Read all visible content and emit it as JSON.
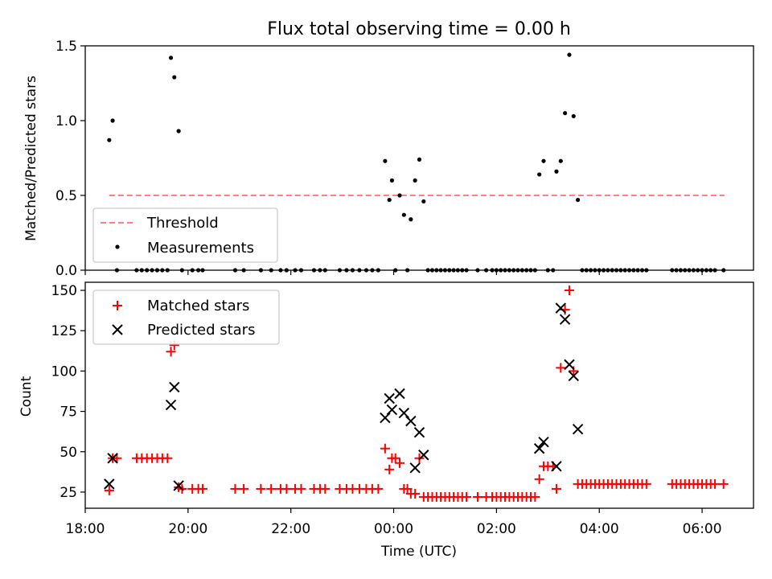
{
  "figure": {
    "title": "Flux total observing time = 0.00 h",
    "xlabel": "Time (UTC)"
  },
  "chart_data": [
    {
      "type": "scatter",
      "title": "Flux total observing time = 0.00 h",
      "ylabel": "Matched/Predicted stars",
      "xlim": [
        "18:00",
        "07:00"
      ],
      "ylim": [
        0,
        1.5
      ],
      "yticks": [
        0.0,
        0.5,
        1.0,
        1.5
      ],
      "ytick_labels": [
        "0.0",
        "0.5",
        "1.0",
        "1.5"
      ],
      "grid": false,
      "legend": {
        "placement": "lower-left",
        "entries": [
          "Threshold",
          "Measurements"
        ]
      },
      "threshold": {
        "name": "Threshold",
        "value": 0.5,
        "x_start": "18:28",
        "x_end": "06:26",
        "color": "#ff7f7f",
        "style": "dashed"
      },
      "measurements": {
        "name": "Measurements",
        "color": "#000000",
        "points": [
          [
            "18:28",
            0.87
          ],
          [
            "18:32",
            1.0
          ],
          [
            "18:37",
            0.0
          ],
          [
            "19:00",
            0.0
          ],
          [
            "19:06",
            0.0
          ],
          [
            "19:12",
            0.0
          ],
          [
            "19:18",
            0.0
          ],
          [
            "19:24",
            0.0
          ],
          [
            "19:30",
            0.0
          ],
          [
            "19:36",
            0.0
          ],
          [
            "19:40",
            1.42
          ],
          [
            "19:44",
            1.29
          ],
          [
            "19:49",
            0.93
          ],
          [
            "19:53",
            0.0
          ],
          [
            "20:05",
            0.0
          ],
          [
            "20:12",
            0.0
          ],
          [
            "20:17",
            0.0
          ],
          [
            "20:55",
            0.0
          ],
          [
            "21:05",
            0.0
          ],
          [
            "21:25",
            0.0
          ],
          [
            "21:37",
            0.0
          ],
          [
            "21:48",
            0.0
          ],
          [
            "21:55",
            0.0
          ],
          [
            "22:05",
            0.0
          ],
          [
            "22:12",
            0.0
          ],
          [
            "22:27",
            0.0
          ],
          [
            "22:34",
            0.0
          ],
          [
            "22:40",
            0.0
          ],
          [
            "22:57",
            0.0
          ],
          [
            "23:05",
            0.0
          ],
          [
            "23:12",
            0.0
          ],
          [
            "23:20",
            0.0
          ],
          [
            "23:28",
            0.0
          ],
          [
            "23:35",
            0.0
          ],
          [
            "23:42",
            0.0
          ],
          [
            "23:50",
            0.73
          ],
          [
            "23:55",
            0.47
          ],
          [
            "23:58",
            0.6
          ],
          [
            "24:02",
            0.0
          ],
          [
            "24:07",
            0.5
          ],
          [
            "24:12",
            0.37
          ],
          [
            "24:16",
            0.0
          ],
          [
            "24:20",
            0.34
          ],
          [
            "24:25",
            0.6
          ],
          [
            "24:30",
            0.74
          ],
          [
            "24:35",
            0.46
          ],
          [
            "24:40",
            0.0
          ],
          [
            "24:45",
            0.0
          ],
          [
            "24:50",
            0.0
          ],
          [
            "24:55",
            0.0
          ],
          [
            "25:00",
            0.0
          ],
          [
            "25:05",
            0.0
          ],
          [
            "25:10",
            0.0
          ],
          [
            "25:15",
            0.0
          ],
          [
            "25:20",
            0.0
          ],
          [
            "25:25",
            0.0
          ],
          [
            "25:38",
            0.0
          ],
          [
            "25:48",
            0.0
          ],
          [
            "25:55",
            0.0
          ],
          [
            "26:00",
            0.0
          ],
          [
            "26:05",
            0.0
          ],
          [
            "26:10",
            0.0
          ],
          [
            "26:15",
            0.0
          ],
          [
            "26:20",
            0.0
          ],
          [
            "26:25",
            0.0
          ],
          [
            "26:30",
            0.0
          ],
          [
            "26:35",
            0.0
          ],
          [
            "26:40",
            0.0
          ],
          [
            "26:45",
            0.0
          ],
          [
            "26:50",
            0.64
          ],
          [
            "26:55",
            0.73
          ],
          [
            "27:00",
            0.0
          ],
          [
            "27:06",
            0.0
          ],
          [
            "27:10",
            0.66
          ],
          [
            "27:15",
            0.73
          ],
          [
            "27:20",
            1.05
          ],
          [
            "27:25",
            1.44
          ],
          [
            "27:30",
            1.03
          ],
          [
            "27:35",
            0.47
          ],
          [
            "27:40",
            0.0
          ],
          [
            "27:45",
            0.0
          ],
          [
            "27:50",
            0.0
          ],
          [
            "27:55",
            0.0
          ],
          [
            "28:00",
            0.0
          ],
          [
            "28:05",
            0.0
          ],
          [
            "28:10",
            0.0
          ],
          [
            "28:15",
            0.0
          ],
          [
            "28:20",
            0.0
          ],
          [
            "28:25",
            0.0
          ],
          [
            "28:30",
            0.0
          ],
          [
            "28:35",
            0.0
          ],
          [
            "28:40",
            0.0
          ],
          [
            "28:45",
            0.0
          ],
          [
            "28:50",
            0.0
          ],
          [
            "28:55",
            0.0
          ],
          [
            "29:25",
            0.0
          ],
          [
            "29:30",
            0.0
          ],
          [
            "29:35",
            0.0
          ],
          [
            "29:40",
            0.0
          ],
          [
            "29:45",
            0.0
          ],
          [
            "29:50",
            0.0
          ],
          [
            "29:55",
            0.0
          ],
          [
            "30:00",
            0.0
          ],
          [
            "30:05",
            0.0
          ],
          [
            "30:10",
            0.0
          ],
          [
            "30:15",
            0.0
          ],
          [
            "30:25",
            0.0
          ]
        ]
      }
    },
    {
      "type": "scatter",
      "ylabel": "Count",
      "xlabel": "Time (UTC)",
      "xlim": [
        "18:00",
        "07:00"
      ],
      "ylim": [
        15,
        155
      ],
      "yticks": [
        25,
        50,
        75,
        100,
        125,
        150
      ],
      "ytick_labels": [
        "25",
        "50",
        "75",
        "100",
        "125",
        "150"
      ],
      "xticks": [
        "18:00",
        "20:00",
        "22:00",
        "00:00",
        "02:00",
        "04:00",
        "06:00"
      ],
      "grid": false,
      "legend": {
        "placement": "top-left",
        "entries": [
          "Matched stars",
          "Predicted stars"
        ]
      },
      "series": [
        {
          "name": "Matched stars",
          "marker": "plus",
          "color": "#ff0000",
          "points": [
            [
              "18:28",
              26
            ],
            [
              "18:32",
              46
            ],
            [
              "18:37",
              46
            ],
            [
              "19:00",
              46
            ],
            [
              "19:06",
              46
            ],
            [
              "19:12",
              46
            ],
            [
              "19:18",
              46
            ],
            [
              "19:24",
              46
            ],
            [
              "19:30",
              46
            ],
            [
              "19:36",
              46
            ],
            [
              "19:40",
              112
            ],
            [
              "19:44",
              116
            ],
            [
              "19:49",
              28
            ],
            [
              "19:53",
              27
            ],
            [
              "20:05",
              27
            ],
            [
              "20:12",
              27
            ],
            [
              "20:17",
              27
            ],
            [
              "20:55",
              27
            ],
            [
              "21:05",
              27
            ],
            [
              "21:25",
              27
            ],
            [
              "21:37",
              27
            ],
            [
              "21:48",
              27
            ],
            [
              "21:55",
              27
            ],
            [
              "22:05",
              27
            ],
            [
              "22:12",
              27
            ],
            [
              "22:27",
              27
            ],
            [
              "22:34",
              27
            ],
            [
              "22:40",
              27
            ],
            [
              "22:57",
              27
            ],
            [
              "23:05",
              27
            ],
            [
              "23:12",
              27
            ],
            [
              "23:20",
              27
            ],
            [
              "23:28",
              27
            ],
            [
              "23:35",
              27
            ],
            [
              "23:42",
              27
            ],
            [
              "23:50",
              52
            ],
            [
              "23:55",
              39
            ],
            [
              "23:58",
              46
            ],
            [
              "24:02",
              46
            ],
            [
              "24:07",
              43
            ],
            [
              "24:12",
              27
            ],
            [
              "24:16",
              27
            ],
            [
              "24:20",
              24
            ],
            [
              "24:25",
              24
            ],
            [
              "24:30",
              46
            ],
            [
              "24:35",
              22
            ],
            [
              "24:40",
              22
            ],
            [
              "24:45",
              22
            ],
            [
              "24:50",
              22
            ],
            [
              "24:55",
              22
            ],
            [
              "25:00",
              22
            ],
            [
              "25:05",
              22
            ],
            [
              "25:10",
              22
            ],
            [
              "25:15",
              22
            ],
            [
              "25:20",
              22
            ],
            [
              "25:25",
              22
            ],
            [
              "25:38",
              22
            ],
            [
              "25:48",
              22
            ],
            [
              "25:55",
              22
            ],
            [
              "26:00",
              22
            ],
            [
              "26:05",
              22
            ],
            [
              "26:10",
              22
            ],
            [
              "26:15",
              22
            ],
            [
              "26:20",
              22
            ],
            [
              "26:25",
              22
            ],
            [
              "26:30",
              22
            ],
            [
              "26:35",
              22
            ],
            [
              "26:40",
              22
            ],
            [
              "26:45",
              22
            ],
            [
              "26:50",
              33
            ],
            [
              "26:55",
              41
            ],
            [
              "27:00",
              41
            ],
            [
              "27:06",
              41
            ],
            [
              "27:10",
              27
            ],
            [
              "27:15",
              102
            ],
            [
              "27:20",
              138
            ],
            [
              "27:25",
              150
            ],
            [
              "27:30",
              100
            ],
            [
              "27:35",
              30
            ],
            [
              "27:40",
              30
            ],
            [
              "27:45",
              30
            ],
            [
              "27:50",
              30
            ],
            [
              "27:55",
              30
            ],
            [
              "28:00",
              30
            ],
            [
              "28:05",
              30
            ],
            [
              "28:10",
              30
            ],
            [
              "28:15",
              30
            ],
            [
              "28:20",
              30
            ],
            [
              "28:25",
              30
            ],
            [
              "28:30",
              30
            ],
            [
              "28:35",
              30
            ],
            [
              "28:40",
              30
            ],
            [
              "28:45",
              30
            ],
            [
              "28:50",
              30
            ],
            [
              "28:55",
              30
            ],
            [
              "29:25",
              30
            ],
            [
              "29:30",
              30
            ],
            [
              "29:35",
              30
            ],
            [
              "29:40",
              30
            ],
            [
              "29:45",
              30
            ],
            [
              "29:50",
              30
            ],
            [
              "29:55",
              30
            ],
            [
              "30:00",
              30
            ],
            [
              "30:05",
              30
            ],
            [
              "30:10",
              30
            ],
            [
              "30:15",
              30
            ],
            [
              "30:25",
              30
            ]
          ]
        },
        {
          "name": "Predicted stars",
          "marker": "x",
          "color": "#000000",
          "points": [
            [
              "18:28",
              30
            ],
            [
              "18:32",
              46
            ],
            [
              "19:40",
              79
            ],
            [
              "19:44",
              90
            ],
            [
              "19:49",
              29
            ],
            [
              "23:50",
              71
            ],
            [
              "23:55",
              83
            ],
            [
              "23:58",
              76
            ],
            [
              "24:07",
              86
            ],
            [
              "24:12",
              74
            ],
            [
              "24:20",
              69
            ],
            [
              "24:25",
              40
            ],
            [
              "24:30",
              62
            ],
            [
              "24:35",
              48
            ],
            [
              "26:50",
              52
            ],
            [
              "26:55",
              56
            ],
            [
              "27:10",
              41
            ],
            [
              "27:15",
              139
            ],
            [
              "27:20",
              132
            ],
            [
              "27:25",
              104
            ],
            [
              "27:30",
              97
            ],
            [
              "27:35",
              64
            ]
          ]
        }
      ]
    }
  ]
}
